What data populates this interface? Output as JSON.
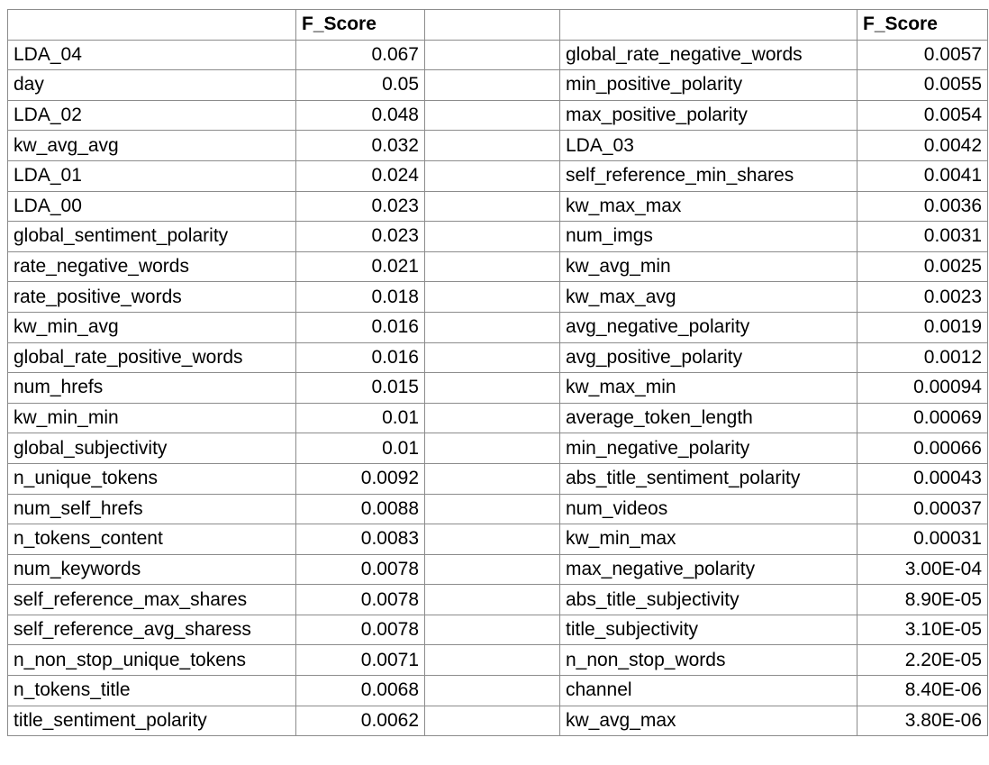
{
  "header": {
    "left_name": "",
    "left_score": "F_Score",
    "spacer": "",
    "right_name": "",
    "right_score": "F_Score"
  },
  "rows": [
    {
      "left_name": "LDA_04",
      "left_score": "0.067",
      "right_name": "global_rate_negative_words",
      "right_score": "0.0057"
    },
    {
      "left_name": "day",
      "left_score": "0.05",
      "right_name": "min_positive_polarity",
      "right_score": "0.0055"
    },
    {
      "left_name": "LDA_02",
      "left_score": "0.048",
      "right_name": "max_positive_polarity",
      "right_score": "0.0054"
    },
    {
      "left_name": "kw_avg_avg",
      "left_score": "0.032",
      "right_name": "LDA_03",
      "right_score": "0.0042"
    },
    {
      "left_name": "LDA_01",
      "left_score": "0.024",
      "right_name": "self_reference_min_shares",
      "right_score": "0.0041"
    },
    {
      "left_name": "LDA_00",
      "left_score": "0.023",
      "right_name": "kw_max_max",
      "right_score": "0.0036"
    },
    {
      "left_name": "global_sentiment_polarity",
      "left_score": "0.023",
      "right_name": "num_imgs",
      "right_score": "0.0031"
    },
    {
      "left_name": "rate_negative_words",
      "left_score": "0.021",
      "right_name": "kw_avg_min",
      "right_score": "0.0025"
    },
    {
      "left_name": "rate_positive_words",
      "left_score": "0.018",
      "right_name": "kw_max_avg",
      "right_score": "0.0023"
    },
    {
      "left_name": "kw_min_avg",
      "left_score": "0.016",
      "right_name": "avg_negative_polarity",
      "right_score": "0.0019"
    },
    {
      "left_name": "global_rate_positive_words",
      "left_score": "0.016",
      "right_name": "avg_positive_polarity",
      "right_score": "0.0012"
    },
    {
      "left_name": "num_hrefs",
      "left_score": "0.015",
      "right_name": "kw_max_min",
      "right_score": "0.00094"
    },
    {
      "left_name": "kw_min_min",
      "left_score": "0.01",
      "right_name": "average_token_length",
      "right_score": "0.00069"
    },
    {
      "left_name": "global_subjectivity",
      "left_score": "0.01",
      "right_name": "min_negative_polarity",
      "right_score": "0.00066"
    },
    {
      "left_name": "n_unique_tokens",
      "left_score": "0.0092",
      "right_name": "abs_title_sentiment_polarity",
      "right_score": "0.00043"
    },
    {
      "left_name": "num_self_hrefs",
      "left_score": "0.0088",
      "right_name": "num_videos",
      "right_score": "0.00037"
    },
    {
      "left_name": "n_tokens_content",
      "left_score": "0.0083",
      "right_name": "kw_min_max",
      "right_score": "0.00031"
    },
    {
      "left_name": "num_keywords",
      "left_score": "0.0078",
      "right_name": "max_negative_polarity",
      "right_score": "3.00E-04"
    },
    {
      "left_name": "self_reference_max_shares",
      "left_score": "0.0078",
      "right_name": "abs_title_subjectivity",
      "right_score": "8.90E-05"
    },
    {
      "left_name": "self_reference_avg_sharess",
      "left_score": "0.0078",
      "right_name": "title_subjectivity",
      "right_score": "3.10E-05"
    },
    {
      "left_name": "n_non_stop_unique_tokens",
      "left_score": "0.0071",
      "right_name": "n_non_stop_words",
      "right_score": "2.20E-05"
    },
    {
      "left_name": "n_tokens_title",
      "left_score": "0.0068",
      "right_name": "channel",
      "right_score": "8.40E-06"
    },
    {
      "left_name": "title_sentiment_polarity",
      "left_score": "0.0062",
      "right_name": "kw_avg_max",
      "right_score": "3.80E-06"
    }
  ]
}
